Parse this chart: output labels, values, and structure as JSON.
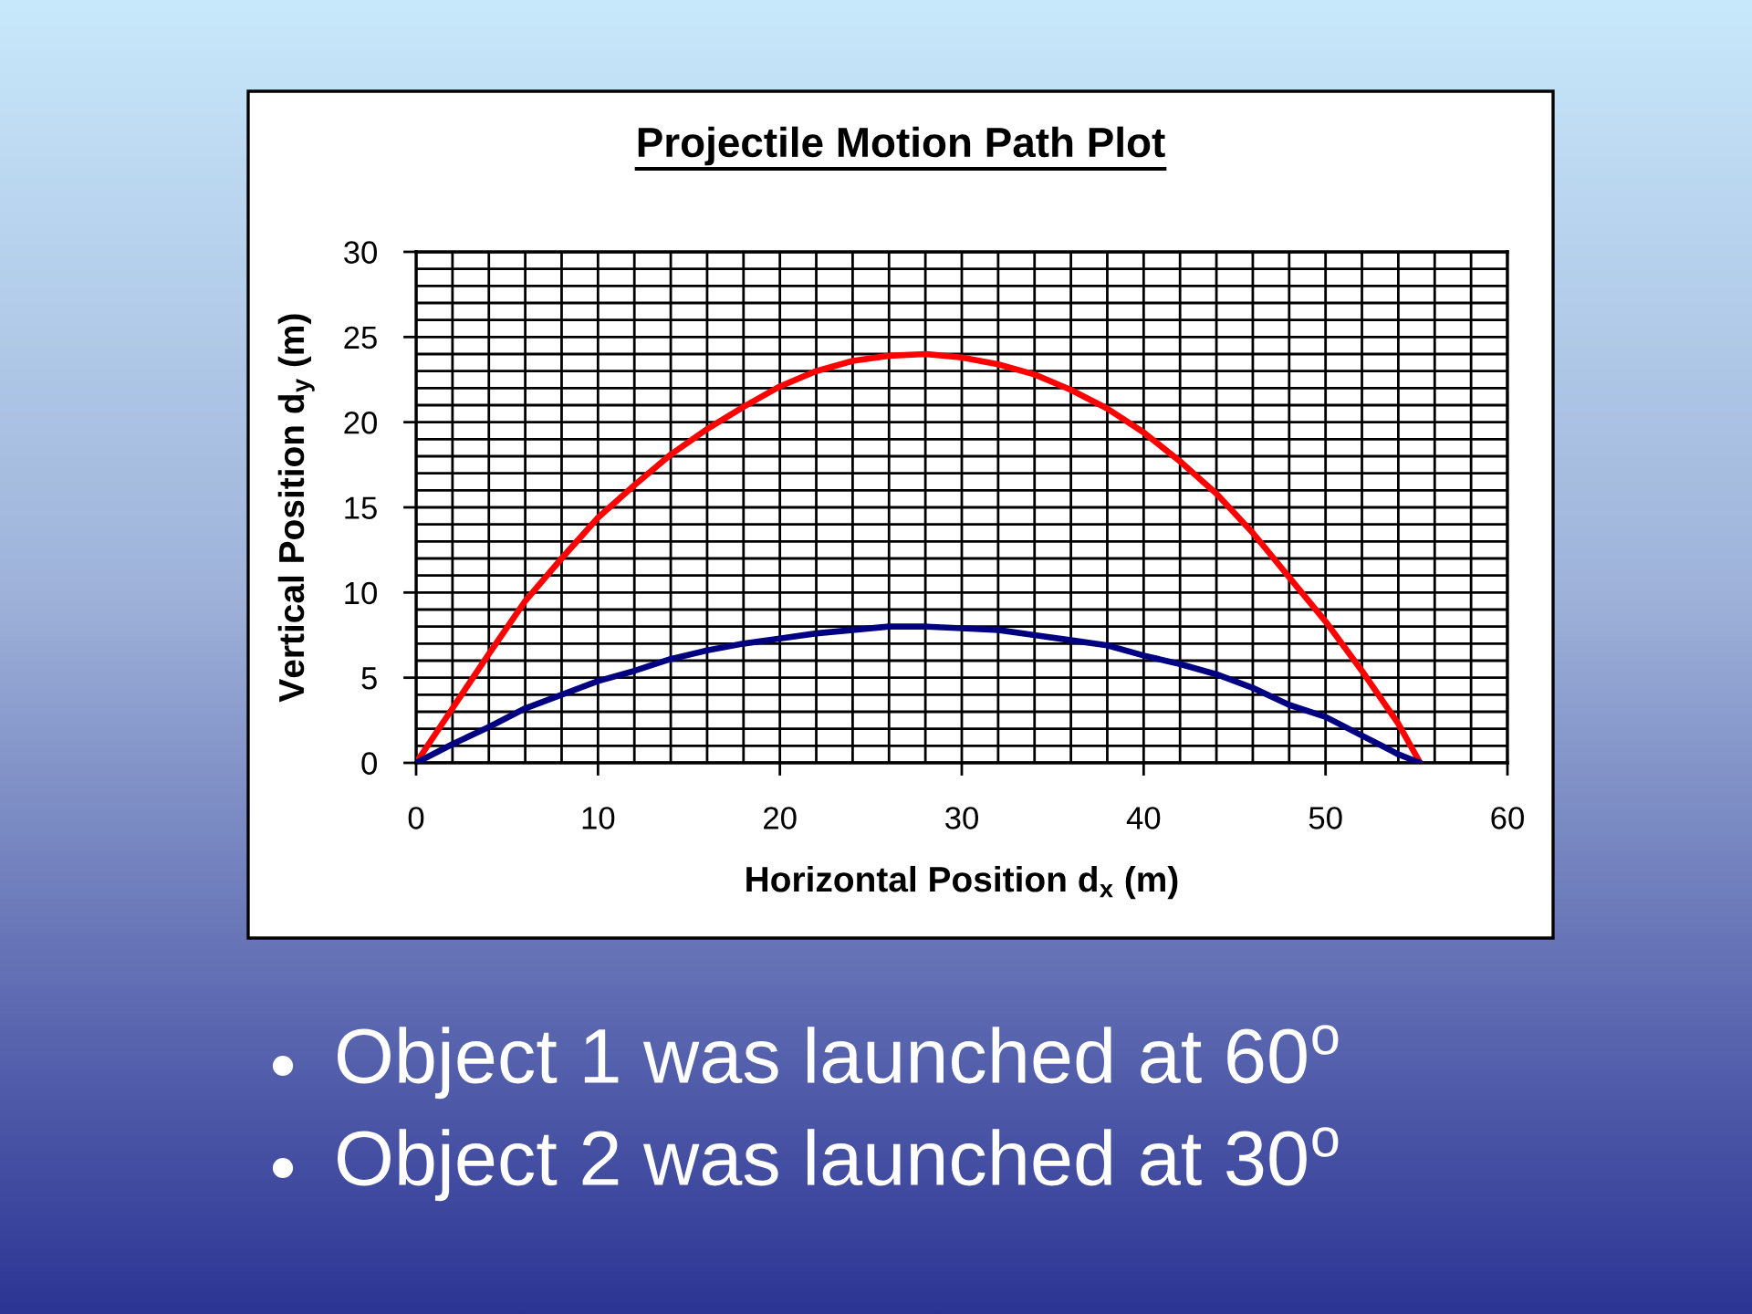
{
  "chart_data": {
    "type": "line",
    "title": "Projectile Motion Path Plot",
    "xlabel": "Horizontal Position d$_{x}$ (m)",
    "ylabel": "Vertical Position d$_{y}$ (m)",
    "annotations": [
      "Object 1 was launched at 60$^{o}$",
      "Object 2 was launched at 30$^{o}$"
    ],
    "x": [
      0,
      2,
      4,
      6,
      8,
      10,
      12,
      14,
      16,
      18,
      20,
      22,
      24,
      26,
      28,
      30,
      32,
      34,
      36,
      38,
      40,
      42,
      44,
      46,
      48,
      50,
      52,
      54,
      55.2
    ],
    "series": [
      {
        "color": "#ff0000",
        "values": [
          0,
          3.2,
          6.4,
          9.5,
          12.0,
          14.4,
          16.3,
          18.1,
          19.6,
          20.9,
          22.1,
          23.0,
          23.6,
          23.9,
          24.0,
          23.8,
          23.4,
          22.8,
          21.9,
          20.8,
          19.4,
          17.7,
          15.8,
          13.5,
          10.9,
          8.3,
          5.4,
          2.3,
          0
        ]
      },
      {
        "color": "#000080",
        "values": [
          0,
          1.1,
          2.1,
          3.2,
          4.0,
          4.8,
          5.4,
          6.1,
          6.6,
          7.0,
          7.3,
          7.6,
          7.8,
          8.0,
          8.0,
          7.9,
          7.8,
          7.5,
          7.2,
          6.9,
          6.3,
          5.8,
          5.2,
          4.4,
          3.4,
          2.7,
          1.6,
          0.5,
          0
        ]
      }
    ],
    "xlim": [
      0,
      60
    ],
    "ylim": [
      0,
      30
    ],
    "xticks": [
      0,
      {
        "value": 2,
        "label": null
      },
      {
        "value": 4,
        "label": null
      },
      {
        "value": 6,
        "label": null
      },
      {
        "value": 8,
        "label": null
      },
      10,
      {
        "value": 12,
        "label": null
      },
      {
        "value": 14,
        "label": null
      },
      {
        "value": 16,
        "label": null
      },
      {
        "value": 18,
        "label": null
      },
      20,
      {
        "value": 22,
        "label": null
      },
      {
        "value": 24,
        "label": null
      },
      {
        "value": 26,
        "label": null
      },
      {
        "value": 28,
        "label": null
      },
      30,
      {
        "value": 32,
        "label": null
      },
      {
        "value": 34,
        "label": null
      },
      {
        "value": 36,
        "label": null
      },
      {
        "value": 38,
        "label": null
      },
      40,
      {
        "value": 42,
        "label": null
      },
      {
        "value": 44,
        "label": null
      },
      {
        "value": 46,
        "label": null
      },
      {
        "value": 48,
        "label": null
      },
      50,
      {
        "value": 52,
        "label": null
      },
      {
        "value": 54,
        "label": null
      },
      {
        "value": 56,
        "label": null
      },
      {
        "value": 58,
        "label": null
      },
      60
    ],
    "yticks": [
      0,
      {
        "value": 1,
        "label": null
      },
      {
        "value": 2,
        "label": null
      },
      {
        "value": 3,
        "label": null
      },
      {
        "value": 4,
        "label": null
      },
      5,
      {
        "value": 6,
        "label": null
      },
      {
        "value": 7,
        "label": null
      },
      {
        "value": 8,
        "label": null
      },
      {
        "value": 9,
        "label": null
      },
      10,
      {
        "value": 11,
        "label": null
      },
      {
        "value": 12,
        "label": null
      },
      {
        "value": 13,
        "label": null
      },
      {
        "value": 14,
        "label": null
      },
      15,
      {
        "value": 16,
        "label": null
      },
      {
        "value": 17,
        "label": null
      },
      {
        "value": 18,
        "label": null
      },
      {
        "value": 19,
        "label": null
      },
      20,
      {
        "value": 21,
        "label": null
      },
      {
        "value": 22,
        "label": null
      },
      {
        "value": 23,
        "label": null
      },
      {
        "value": 24,
        "label": null
      },
      25,
      {
        "value": 26,
        "label": null
      },
      {
        "value": 27,
        "label": null
      },
      {
        "value": 28,
        "label": null
      },
      {
        "value": 29,
        "label": null
      },
      30
    ],
    "grid": true
  }
}
